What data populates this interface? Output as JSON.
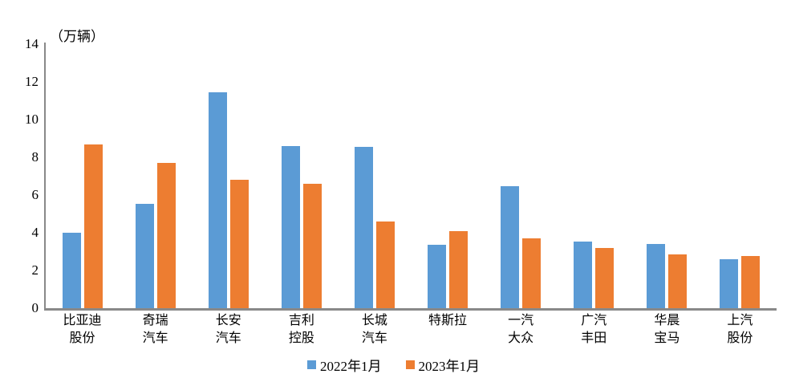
{
  "chart_data": {
    "type": "bar",
    "title": "",
    "unit_label": "（万辆）",
    "xlabel": "",
    "ylabel": "万辆",
    "ylim": [
      0,
      14
    ],
    "ytick_step": 2,
    "grid": false,
    "legend_position": "bottom-center",
    "categories": [
      "比亚迪股份",
      "奇瑞汽车",
      "长安汽车",
      "吉利控股",
      "长城汽车",
      "特斯拉",
      "一汽大众",
      "广汽丰田",
      "华晨宝马",
      "上汽股份"
    ],
    "category_label_lines": [
      [
        "比亚迪",
        "股份"
      ],
      [
        "奇瑞",
        "汽车"
      ],
      [
        "长安",
        "汽车"
      ],
      [
        "吉利",
        "控股"
      ],
      [
        "长城",
        "汽车"
      ],
      [
        "特斯拉"
      ],
      [
        "一汽",
        "大众"
      ],
      [
        "广汽",
        "丰田"
      ],
      [
        "华晨",
        "宝马"
      ],
      [
        "上汽",
        "股份"
      ]
    ],
    "series": [
      {
        "name": "2022年1月",
        "color": "#5B9BD5",
        "values": [
          4.0,
          5.55,
          11.45,
          8.6,
          8.55,
          3.35,
          6.45,
          3.55,
          3.4,
          2.6
        ]
      },
      {
        "name": "2023年1月",
        "color": "#ED7D31",
        "values": [
          8.7,
          7.7,
          6.8,
          6.6,
          4.6,
          4.1,
          3.7,
          3.2,
          2.85,
          2.75
        ]
      }
    ],
    "colors": {
      "axis_line": "#898989",
      "text": "#000000",
      "background": "#ffffff"
    }
  }
}
